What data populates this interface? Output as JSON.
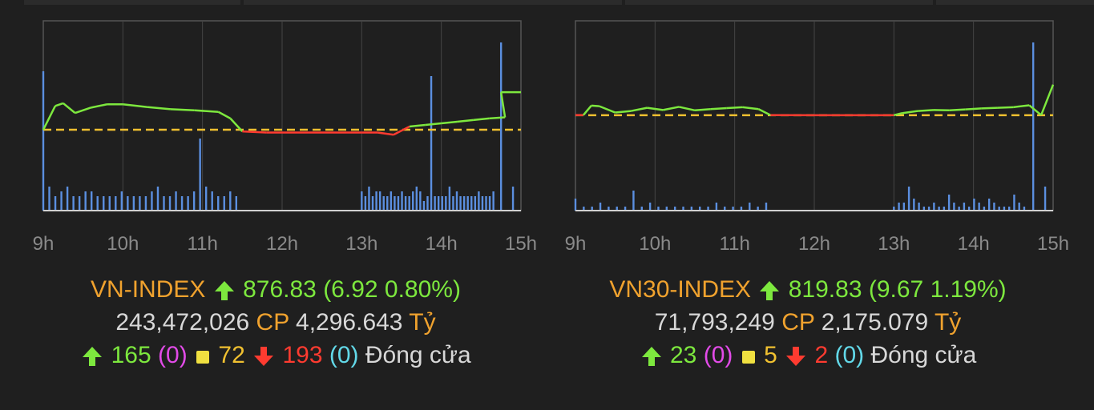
{
  "chart_data": [
    {
      "type": "line",
      "title": "VN-INDEX",
      "x_ticks": [
        "9h",
        "10h",
        "11h",
        "12h",
        "13h",
        "14h",
        "15h"
      ],
      "reference_value": 869.91,
      "ylim": [
        855,
        890
      ],
      "series": [
        {
          "values_x": [
            9.0,
            9.15,
            9.25,
            9.4,
            9.6,
            9.8,
            10.0,
            10.3,
            10.6,
            10.9,
            11.2,
            11.35,
            11.5,
            11.8,
            12.0,
            13.0,
            13.2,
            13.4,
            13.6,
            13.8,
            14.0,
            14.2,
            14.4,
            14.6,
            14.8,
            14.75,
            15.0
          ],
          "values_y": [
            869.9,
            874.3,
            874.8,
            873.0,
            874.0,
            874.6,
            874.6,
            874.1,
            873.7,
            873.5,
            873.2,
            872.0,
            869.6,
            869.4,
            869.4,
            869.4,
            869.4,
            869.0,
            870.5,
            870.8,
            871.1,
            871.4,
            871.7,
            872.0,
            872.2,
            876.83,
            876.83
          ]
        }
      ],
      "volume_bars": [
        29,
        5,
        3,
        4,
        5,
        3,
        3,
        4,
        4,
        3,
        3,
        3,
        3,
        4,
        3,
        3,
        3,
        3,
        4,
        5,
        3,
        3,
        4,
        3,
        3,
        4,
        15,
        5,
        4,
        3,
        3,
        4,
        3,
        4,
        3,
        5,
        3,
        4,
        4,
        3,
        3,
        4,
        3,
        3,
        4,
        3,
        3,
        4,
        5,
        4,
        2,
        3,
        28,
        3,
        3,
        3,
        3,
        5,
        3,
        4,
        3,
        3,
        3,
        3,
        3,
        4,
        3,
        3,
        3,
        4,
        35,
        5
      ],
      "label": "VN-INDEX",
      "value": "876.83",
      "change": "(6.92 0.80%)",
      "volume": "243,472,026",
      "volume_unit": "CP",
      "turnover": "4,296.643",
      "turnover_unit": "Tỷ",
      "advances": "165",
      "advances_ceiling": "(0)",
      "unchanged": "72",
      "declines": "193",
      "declines_floor": "(0)",
      "status": "Đóng cửa"
    },
    {
      "type": "line",
      "title": "VN30-INDEX",
      "x_ticks": [
        "9h",
        "10h",
        "11h",
        "12h",
        "13h",
        "14h",
        "15h"
      ],
      "reference_value": 810.16,
      "ylim": [
        780,
        840
      ],
      "series": [
        {
          "values_x": [
            9.0,
            9.1,
            9.2,
            9.3,
            9.5,
            9.7,
            9.9,
            10.1,
            10.3,
            10.5,
            10.7,
            10.9,
            11.1,
            11.3,
            11.45,
            12.0,
            13.0,
            13.1,
            13.3,
            13.5,
            13.7,
            13.9,
            14.1,
            14.3,
            14.5,
            14.7,
            14.85,
            15.0
          ],
          "values_y": [
            810.2,
            810.2,
            813.2,
            813.0,
            811.0,
            811.5,
            812.5,
            811.8,
            812.8,
            811.7,
            812.1,
            812.4,
            812.7,
            812.1,
            810.2,
            810.16,
            810.16,
            810.8,
            811.5,
            811.8,
            811.7,
            812.0,
            812.3,
            812.5,
            812.7,
            813.3,
            810.2,
            819.83
          ]
        }
      ],
      "volume_bars": [
        3,
        1,
        1,
        2,
        1,
        1,
        1,
        5,
        1,
        2,
        1,
        1,
        1,
        1,
        1,
        1,
        1,
        2,
        1,
        1,
        1,
        2,
        1,
        2,
        1,
        2,
        2,
        6,
        3,
        2,
        1,
        1,
        2,
        1,
        1,
        4,
        2,
        1,
        2,
        1,
        3,
        2,
        1,
        3,
        2,
        1,
        1,
        1,
        4,
        2,
        1,
        42,
        6
      ],
      "label": "VN30-INDEX",
      "value": "819.83",
      "change": "(9.67 1.19%)",
      "volume": "71,793,249",
      "volume_unit": "CP",
      "turnover": "2,175.079",
      "turnover_unit": "Tỷ",
      "advances": "23",
      "advances_ceiling": "(0)",
      "unchanged": "5",
      "declines": "2",
      "declines_floor": "(0)",
      "status": "Đóng cửa"
    }
  ],
  "colors": {
    "background": "#1f1f1f",
    "up": "#7de83e",
    "down": "#ff3b30",
    "reference": "#f0c030",
    "volume": "#5b8fe0",
    "label": "#f0a22e"
  }
}
